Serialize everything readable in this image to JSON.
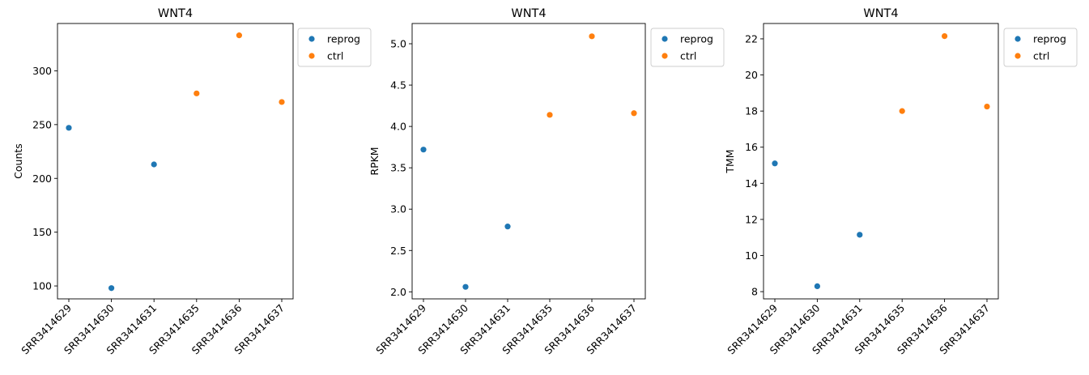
{
  "figure": {
    "background": "#ffffff"
  },
  "chart_data": [
    {
      "type": "scatter",
      "title": "WNT4",
      "xlabel": "",
      "ylabel": "Counts",
      "categories": [
        "SRR3414629",
        "SRR3414630",
        "SRR3414631",
        "SRR3414635",
        "SRR3414636",
        "SRR3414637"
      ],
      "ylim": [
        88,
        344
      ],
      "yticks": [
        100,
        150,
        200,
        250,
        300
      ],
      "ytick_labels": [
        "100",
        "150",
        "200",
        "250",
        "300"
      ],
      "series": [
        {
          "name": "reprog",
          "color": "#1f77b4",
          "points": [
            {
              "x": "SRR3414629",
              "y": 247
            },
            {
              "x": "SRR3414630",
              "y": 98
            },
            {
              "x": "SRR3414631",
              "y": 213
            }
          ]
        },
        {
          "name": "ctrl",
          "color": "#ff7f0e",
          "points": [
            {
              "x": "SRR3414635",
              "y": 279
            },
            {
              "x": "SRR3414636",
              "y": 333
            },
            {
              "x": "SRR3414637",
              "y": 271
            }
          ]
        }
      ],
      "legend_position": "outside-top-right",
      "grid": false
    },
    {
      "type": "scatter",
      "title": "WNT4",
      "xlabel": "",
      "ylabel": "RPKM",
      "categories": [
        "SRR3414629",
        "SRR3414630",
        "SRR3414631",
        "SRR3414635",
        "SRR3414636",
        "SRR3414637"
      ],
      "ylim": [
        1.915,
        5.245
      ],
      "yticks": [
        2.0,
        2.5,
        3.0,
        3.5,
        4.0,
        4.5,
        5.0
      ],
      "ytick_labels": [
        "2.0",
        "2.5",
        "3.0",
        "3.5",
        "4.0",
        "4.5",
        "5.0"
      ],
      "series": [
        {
          "name": "reprog",
          "color": "#1f77b4",
          "points": [
            {
              "x": "SRR3414629",
              "y": 3.72
            },
            {
              "x": "SRR3414630",
              "y": 2.06
            },
            {
              "x": "SRR3414631",
              "y": 2.79
            }
          ]
        },
        {
          "name": "ctrl",
          "color": "#ff7f0e",
          "points": [
            {
              "x": "SRR3414635",
              "y": 4.14
            },
            {
              "x": "SRR3414636",
              "y": 5.09
            },
            {
              "x": "SRR3414637",
              "y": 4.16
            }
          ]
        }
      ],
      "legend_position": "outside-top-right",
      "grid": false
    },
    {
      "type": "scatter",
      "title": "WNT4",
      "xlabel": "",
      "ylabel": "TMM",
      "categories": [
        "SRR3414629",
        "SRR3414630",
        "SRR3414631",
        "SRR3414635",
        "SRR3414636",
        "SRR3414637"
      ],
      "ylim": [
        7.6,
        22.85
      ],
      "yticks": [
        8,
        10,
        12,
        14,
        16,
        18,
        20,
        22
      ],
      "ytick_labels": [
        "8",
        "10",
        "12",
        "14",
        "16",
        "18",
        "20",
        "22"
      ],
      "series": [
        {
          "name": "reprog",
          "color": "#1f77b4",
          "points": [
            {
              "x": "SRR3414629",
              "y": 15.1
            },
            {
              "x": "SRR3414630",
              "y": 8.3
            },
            {
              "x": "SRR3414631",
              "y": 11.15
            }
          ]
        },
        {
          "name": "ctrl",
          "color": "#ff7f0e",
          "points": [
            {
              "x": "SRR3414635",
              "y": 18.0
            },
            {
              "x": "SRR3414636",
              "y": 22.15
            },
            {
              "x": "SRR3414637",
              "y": 18.25
            }
          ]
        }
      ],
      "legend_position": "outside-top-right",
      "grid": false
    }
  ]
}
